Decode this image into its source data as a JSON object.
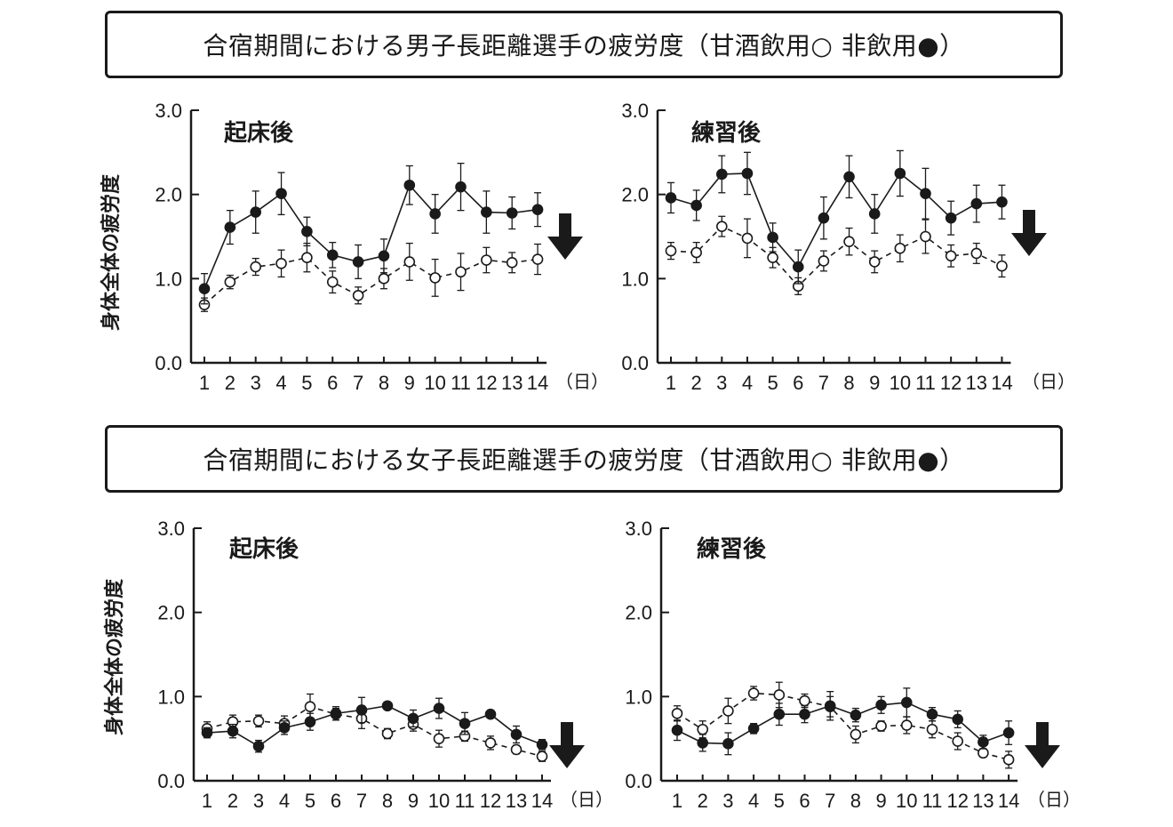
{
  "titles": {
    "men": "合宿期間における男子長距離選手の疲労度（甘酒飲用○ 非飲用●）",
    "women": "合宿期間における女子長距離選手の疲労度（甘酒飲用○ 非飲用●）"
  },
  "ylabel": "身体全体の疲労度",
  "unit_label": "（日）",
  "chart_data": [
    {
      "type": "line",
      "group": "men",
      "title": "起床後",
      "x": [
        1,
        2,
        3,
        4,
        5,
        6,
        7,
        8,
        9,
        10,
        11,
        12,
        13,
        14
      ],
      "ylim": [
        0,
        3
      ],
      "yticks": [
        "0.0",
        "1.0",
        "2.0",
        "3.0"
      ],
      "xlabel": "（日）",
      "ylabel": "身体全体の疲労度",
      "series": [
        {
          "marker": "filled",
          "line": "solid",
          "values": [
            0.88,
            1.61,
            1.79,
            2.01,
            1.56,
            1.28,
            1.2,
            1.27,
            2.11,
            1.77,
            2.09,
            1.79,
            1.78,
            1.82
          ],
          "errors": [
            0.18,
            0.2,
            0.25,
            0.25,
            0.17,
            0.15,
            0.2,
            0.2,
            0.23,
            0.23,
            0.28,
            0.25,
            0.19,
            0.2
          ]
        },
        {
          "marker": "open",
          "line": "dashed",
          "values": [
            0.69,
            0.96,
            1.14,
            1.18,
            1.25,
            0.96,
            0.8,
            1.0,
            1.2,
            1.01,
            1.08,
            1.22,
            1.19,
            1.23
          ],
          "errors": [
            0.08,
            0.08,
            0.1,
            0.16,
            0.17,
            0.13,
            0.1,
            0.12,
            0.22,
            0.22,
            0.22,
            0.15,
            0.12,
            0.18
          ]
        }
      ],
      "arrow": "down"
    },
    {
      "type": "line",
      "group": "men",
      "title": "練習後",
      "x": [
        1,
        2,
        3,
        4,
        5,
        6,
        7,
        8,
        9,
        10,
        11,
        12,
        13,
        14
      ],
      "ylim": [
        0,
        3
      ],
      "yticks": [
        "0.0",
        "1.0",
        "2.0",
        "3.0"
      ],
      "xlabel": "（日）",
      "series": [
        {
          "marker": "filled",
          "line": "solid",
          "values": [
            1.96,
            1.87,
            2.24,
            2.25,
            1.49,
            1.14,
            1.72,
            2.21,
            1.77,
            2.25,
            2.01,
            1.72,
            1.89,
            1.91
          ],
          "errors": [
            0.18,
            0.18,
            0.22,
            0.25,
            0.17,
            0.2,
            0.25,
            0.25,
            0.23,
            0.27,
            0.3,
            0.2,
            0.22,
            0.2
          ]
        },
        {
          "marker": "open",
          "line": "dashed",
          "values": [
            1.33,
            1.31,
            1.62,
            1.48,
            1.25,
            0.91,
            1.21,
            1.44,
            1.2,
            1.36,
            1.5,
            1.27,
            1.3,
            1.15
          ],
          "errors": [
            0.1,
            0.12,
            0.12,
            0.23,
            0.12,
            0.1,
            0.12,
            0.16,
            0.13,
            0.16,
            0.2,
            0.13,
            0.12,
            0.13
          ]
        }
      ],
      "arrow": "down"
    },
    {
      "type": "line",
      "group": "women",
      "title": "起床後",
      "x": [
        1,
        2,
        3,
        4,
        5,
        6,
        7,
        8,
        9,
        10,
        11,
        12,
        13,
        14
      ],
      "ylim": [
        0,
        3
      ],
      "yticks": [
        "0.0",
        "1.0",
        "2.0",
        "3.0"
      ],
      "xlabel": "（日）",
      "ylabel": "身体全体の疲労度",
      "series": [
        {
          "marker": "filled",
          "line": "solid",
          "values": [
            0.57,
            0.59,
            0.41,
            0.63,
            0.7,
            0.8,
            0.84,
            0.89,
            0.74,
            0.86,
            0.68,
            0.79,
            0.55,
            0.43
          ],
          "errors": [
            0.06,
            0.08,
            0.07,
            0.08,
            0.1,
            0.08,
            0.15,
            0.0,
            0.1,
            0.12,
            0.13,
            0.0,
            0.1,
            0.06
          ]
        },
        {
          "marker": "open",
          "line": "dashed",
          "values": [
            0.62,
            0.7,
            0.71,
            0.68,
            0.88,
            0.79,
            0.74,
            0.56,
            0.67,
            0.5,
            0.53,
            0.45,
            0.37,
            0.29
          ],
          "errors": [
            0.08,
            0.08,
            0.07,
            0.09,
            0.15,
            0.07,
            0.12,
            0.06,
            0.08,
            0.1,
            0.06,
            0.08,
            0.05,
            0.06
          ]
        }
      ],
      "arrow": "down"
    },
    {
      "type": "line",
      "group": "women",
      "title": "練習後",
      "x": [
        1,
        2,
        3,
        4,
        5,
        6,
        7,
        8,
        9,
        10,
        11,
        12,
        13,
        14
      ],
      "ylim": [
        0,
        3
      ],
      "yticks": [
        "0.0",
        "1.0",
        "2.0",
        "3.0"
      ],
      "xlabel": "（日）",
      "series": [
        {
          "marker": "filled",
          "line": "solid",
          "values": [
            0.6,
            0.45,
            0.44,
            0.62,
            0.79,
            0.79,
            0.89,
            0.78,
            0.9,
            0.93,
            0.79,
            0.73,
            0.46,
            0.57
          ],
          "errors": [
            0.12,
            0.1,
            0.13,
            0.06,
            0.13,
            0.1,
            0.17,
            0.08,
            0.1,
            0.17,
            0.08,
            0.1,
            0.08,
            0.14
          ]
        },
        {
          "marker": "open",
          "line": "dashed",
          "values": [
            0.8,
            0.61,
            0.83,
            1.04,
            1.02,
            0.95,
            0.88,
            0.55,
            0.65,
            0.66,
            0.61,
            0.47,
            0.33,
            0.25
          ],
          "errors": [
            0.09,
            0.1,
            0.15,
            0.08,
            0.15,
            0.08,
            0.12,
            0.1,
            0.06,
            0.1,
            0.1,
            0.1,
            0.05,
            0.1
          ]
        }
      ],
      "arrow": "down"
    }
  ]
}
